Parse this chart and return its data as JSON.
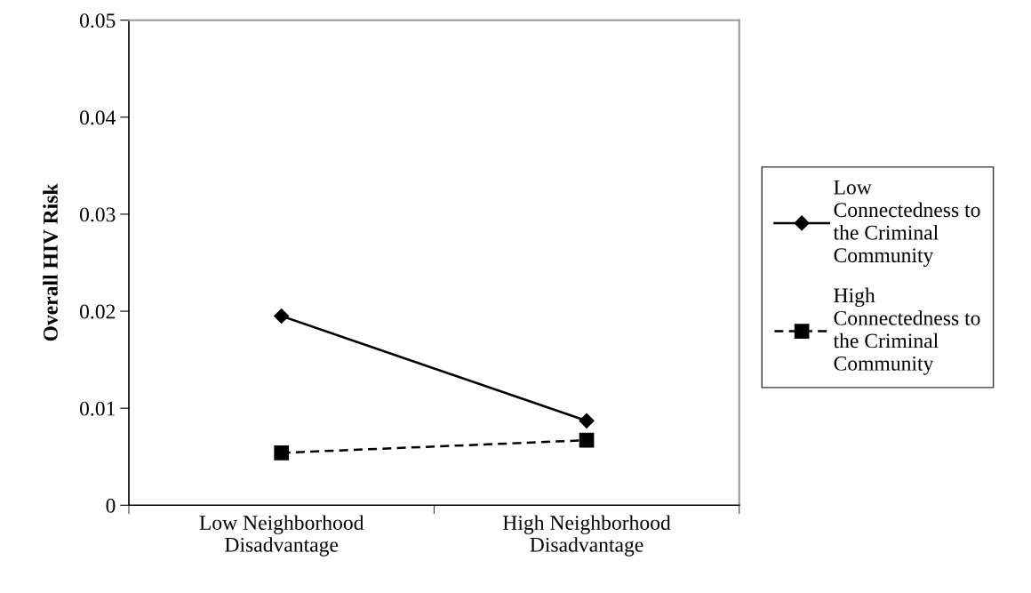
{
  "chart_data": {
    "type": "line",
    "ylabel": "Overall HIV Risk",
    "categories": [
      "Low Neighborhood Disadvantage",
      "High Neighborhood Disadvantage"
    ],
    "series": [
      {
        "name": "Low Connectedness to the Criminal Community",
        "color": "#000000",
        "values": [
          0.0195,
          0.0087
        ],
        "marker": "diamond",
        "line_style": "solid"
      },
      {
        "name": "High Connectedness to the Criminal Community",
        "color": "#000000",
        "values": [
          0.0054,
          0.0067
        ],
        "marker": "square",
        "line_style": "dashed"
      }
    ],
    "ylim": [
      0,
      0.05
    ],
    "yticks": [
      0,
      0.01,
      0.02,
      0.03,
      0.04,
      0.05
    ],
    "grid": false,
    "legend": "right"
  }
}
